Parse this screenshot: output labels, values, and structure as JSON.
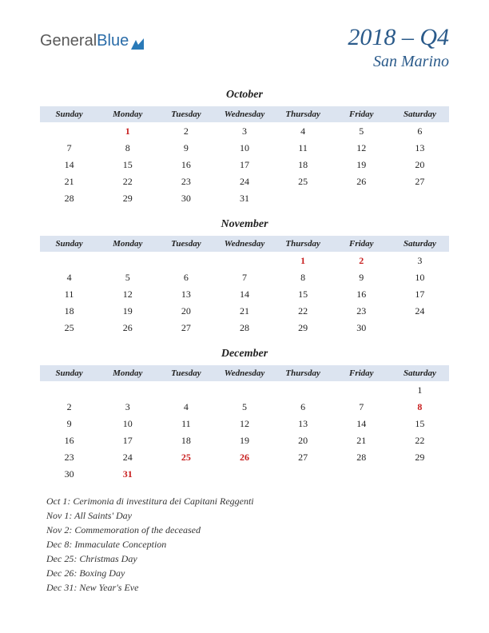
{
  "logo": {
    "text1": "General",
    "text2": "Blue"
  },
  "title": {
    "quarter": "2018 – Q4",
    "region": "San Marino"
  },
  "day_headers": [
    "Sunday",
    "Monday",
    "Tuesday",
    "Wednesday",
    "Thursday",
    "Friday",
    "Saturday"
  ],
  "months": [
    {
      "name": "October",
      "weeks": [
        [
          null,
          {
            "d": "1",
            "h": true
          },
          {
            "d": "2"
          },
          {
            "d": "3"
          },
          {
            "d": "4"
          },
          {
            "d": "5"
          },
          {
            "d": "6"
          }
        ],
        [
          {
            "d": "7"
          },
          {
            "d": "8"
          },
          {
            "d": "9"
          },
          {
            "d": "10"
          },
          {
            "d": "11"
          },
          {
            "d": "12"
          },
          {
            "d": "13"
          }
        ],
        [
          {
            "d": "14"
          },
          {
            "d": "15"
          },
          {
            "d": "16"
          },
          {
            "d": "17"
          },
          {
            "d": "18"
          },
          {
            "d": "19"
          },
          {
            "d": "20"
          }
        ],
        [
          {
            "d": "21"
          },
          {
            "d": "22"
          },
          {
            "d": "23"
          },
          {
            "d": "24"
          },
          {
            "d": "25"
          },
          {
            "d": "26"
          },
          {
            "d": "27"
          }
        ],
        [
          {
            "d": "28"
          },
          {
            "d": "29"
          },
          {
            "d": "30"
          },
          {
            "d": "31"
          },
          null,
          null,
          null
        ]
      ]
    },
    {
      "name": "November",
      "weeks": [
        [
          null,
          null,
          null,
          null,
          {
            "d": "1",
            "h": true
          },
          {
            "d": "2",
            "h": true
          },
          {
            "d": "3"
          }
        ],
        [
          {
            "d": "4"
          },
          {
            "d": "5"
          },
          {
            "d": "6"
          },
          {
            "d": "7"
          },
          {
            "d": "8"
          },
          {
            "d": "9"
          },
          {
            "d": "10"
          }
        ],
        [
          {
            "d": "11"
          },
          {
            "d": "12"
          },
          {
            "d": "13"
          },
          {
            "d": "14"
          },
          {
            "d": "15"
          },
          {
            "d": "16"
          },
          {
            "d": "17"
          }
        ],
        [
          {
            "d": "18"
          },
          {
            "d": "19"
          },
          {
            "d": "20"
          },
          {
            "d": "21"
          },
          {
            "d": "22"
          },
          {
            "d": "23"
          },
          {
            "d": "24"
          }
        ],
        [
          {
            "d": "25"
          },
          {
            "d": "26"
          },
          {
            "d": "27"
          },
          {
            "d": "28"
          },
          {
            "d": "29"
          },
          {
            "d": "30"
          },
          null
        ]
      ]
    },
    {
      "name": "December",
      "weeks": [
        [
          null,
          null,
          null,
          null,
          null,
          null,
          {
            "d": "1"
          }
        ],
        [
          {
            "d": "2"
          },
          {
            "d": "3"
          },
          {
            "d": "4"
          },
          {
            "d": "5"
          },
          {
            "d": "6"
          },
          {
            "d": "7"
          },
          {
            "d": "8",
            "h": true
          }
        ],
        [
          {
            "d": "9"
          },
          {
            "d": "10"
          },
          {
            "d": "11"
          },
          {
            "d": "12"
          },
          {
            "d": "13"
          },
          {
            "d": "14"
          },
          {
            "d": "15"
          }
        ],
        [
          {
            "d": "16"
          },
          {
            "d": "17"
          },
          {
            "d": "18"
          },
          {
            "d": "19"
          },
          {
            "d": "20"
          },
          {
            "d": "21"
          },
          {
            "d": "22"
          }
        ],
        [
          {
            "d": "23"
          },
          {
            "d": "24"
          },
          {
            "d": "25",
            "h": true
          },
          {
            "d": "26",
            "h": true
          },
          {
            "d": "27"
          },
          {
            "d": "28"
          },
          {
            "d": "29"
          }
        ],
        [
          {
            "d": "30"
          },
          {
            "d": "31",
            "h": true
          },
          null,
          null,
          null,
          null,
          null
        ]
      ]
    }
  ],
  "holidays": [
    "Oct 1: Cerimonia di investitura dei Capitani Reggenti",
    "Nov 1: All Saints' Day",
    "Nov 2: Commemoration of the deceased",
    "Dec 8: Immaculate Conception",
    "Dec 25: Christmas Day",
    "Dec 26: Boxing Day",
    "Dec 31: New Year's Eve"
  ],
  "colors": {
    "header_bg": "#dce4f0",
    "holiday_text": "#c81e1e",
    "title_text": "#2a5a8a"
  }
}
